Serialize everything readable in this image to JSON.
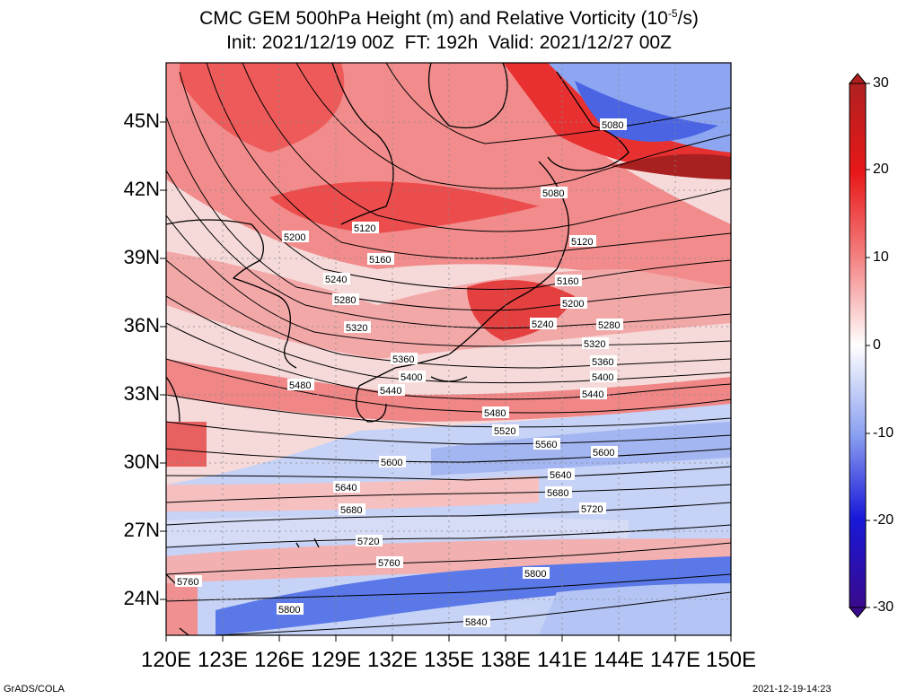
{
  "title": {
    "line1_pre": "CMC GEM 500hPa Height (m) and Relative Vorticity (10",
    "line1_sup": "-5",
    "line1_post": "/s)",
    "line2": "Init: 2021/12/19 00Z  FT: 192h  Valid: 2021/12/27 00Z"
  },
  "axes": {
    "lat_ticks": [
      "45N",
      "42N",
      "39N",
      "36N",
      "33N",
      "30N",
      "27N",
      "24N"
    ],
    "lon_ticks": [
      "120E",
      "123E",
      "126E",
      "129E",
      "132E",
      "135E",
      "138E",
      "141E",
      "144E",
      "147E",
      "150E"
    ]
  },
  "colorbar": {
    "ticks": [
      "30",
      "20",
      "10",
      "0",
      "-10",
      "-20",
      "-30"
    ],
    "colors": [
      "#3a0a8c",
      "#1a1ad0",
      "#6a8cf0",
      "#ffffff",
      "#f08080",
      "#e81010",
      "#a01818"
    ]
  },
  "contour_labels": [
    "5080",
    "5080",
    "5120",
    "5120",
    "5200",
    "5160",
    "5160",
    "5240",
    "5200",
    "5280",
    "5240",
    "5280",
    "5320",
    "5320",
    "5360",
    "5360",
    "5400",
    "5400",
    "5440",
    "5440",
    "5480",
    "5480",
    "5520",
    "5560",
    "5600",
    "5600",
    "5640",
    "5640",
    "5680",
    "5680",
    "5720",
    "5720",
    "5720",
    "5760",
    "5760",
    "5800",
    "5800",
    "5840"
  ],
  "footer": {
    "left": "GrADS/COLA",
    "right": "2021-12-19-14:23"
  }
}
